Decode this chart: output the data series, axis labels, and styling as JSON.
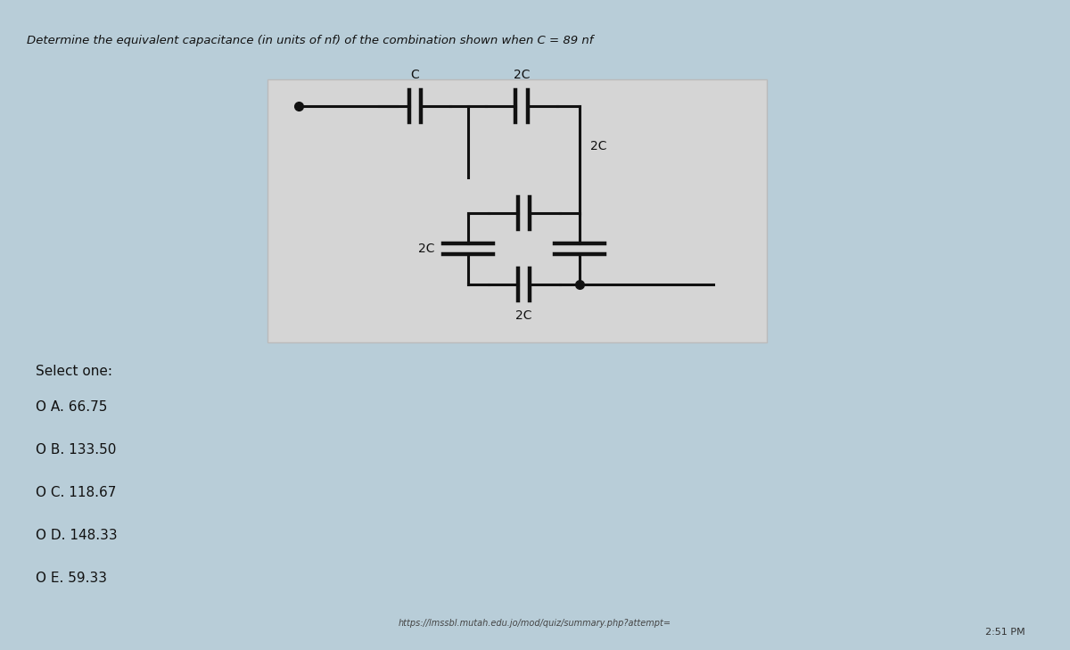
{
  "title": "Determine the equivalent capacitance (in units of nf) of the combination shown when C = 89 nf",
  "bg_color": "#b8cdd8",
  "panel_bg": "#e8e8e8",
  "question_text": "Determine the equivalent capacitance (in units of nf) of the combination shown when C = 89 nf",
  "select_one": "Select one:",
  "options": [
    "O A. 66.75",
    "O B. 133.50",
    "O C. 118.67",
    "O D. 148.33",
    "O E. 59.33"
  ],
  "url": "https://lmssbl.mutah.edu.jo/mod/quiz/summary.php?attempt=",
  "time": "2:51 PM"
}
